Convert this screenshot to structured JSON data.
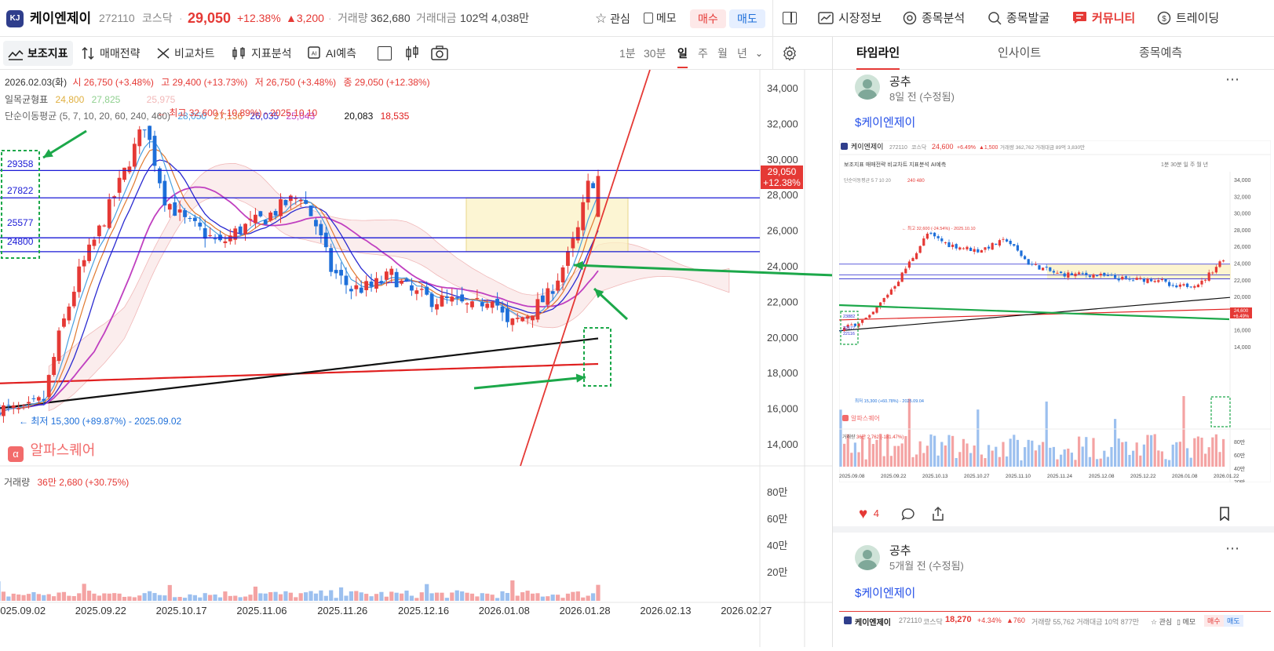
{
  "header": {
    "logo_text": "KJ",
    "name": "케이엔제이",
    "code": "272110",
    "market": "코스닥",
    "price": "29,050",
    "change_pct": "+12.38%",
    "change_abs": "▲3,200",
    "volume_label": "거래량",
    "volume": "362,680",
    "value_label": "거래대금",
    "value": "102억 4,038만",
    "watch_label": "관심",
    "memo_label": "메모",
    "buy_label": "매수",
    "sell_label": "매도",
    "nav": [
      "시장정보",
      "종목분석",
      "종목발굴",
      "커뮤니티",
      "트레이딩"
    ]
  },
  "toolbar": {
    "indicator_label": "보조지표",
    "strategy_label": "매매전략",
    "compare_label": "비교차트",
    "analysis_label": "지표분석",
    "ai_label": "AI예측",
    "periods": [
      "1분",
      "30분",
      "일",
      "주",
      "월",
      "년"
    ],
    "active_period": "일"
  },
  "chart_info": {
    "date": "2026.02.03(화)",
    "open": "시 26,750 (+3.48%)",
    "high": "고 29,400 (+13.73%)",
    "low": "저 26,750 (+3.48%)",
    "close": "종 29,050 (+12.38%)",
    "ichimoku_label": "일목균형표",
    "ichimoku_values": [
      "24,800",
      "27,825",
      "25,975"
    ],
    "ma_label": "단순이동평균 (5, 7, 10, 20, 60, 240, 460)",
    "ma_values": [
      "28,050",
      "27,136",
      "26,035",
      "25,043",
      "20,083",
      "18,535"
    ],
    "max_note": "최고 32,600 (-10.89%) - 2025.10.10",
    "min_note": "← 최저 15,300 (+89.87%) - 2025.09.02",
    "brand": "알파스퀘어",
    "level_labels": [
      "29358",
      "27822",
      "25577",
      "24800"
    ],
    "price_tag": "29,050",
    "price_tag_pct": "+12.38%",
    "volume_label": "거래량",
    "volume_value": "36만 2,680 (+30.75%)",
    "y_ticks": [
      "34,000",
      "32,000",
      "30,000",
      "28,000",
      "26,000",
      "24,000",
      "22,000",
      "20,000",
      "18,000",
      "16,000",
      "14,000"
    ],
    "vol_ticks": [
      "80만",
      "60만",
      "40만",
      "20만"
    ],
    "x_ticks": [
      "2025.09.02",
      "2025.09.22",
      "2025.10.17",
      "2025.11.06",
      "2025.11.26",
      "2025.12.16",
      "2026.01.08",
      "2026.01.28",
      "2026.02.13",
      "2026.02.27"
    ]
  },
  "chart_data": {
    "type": "candlestick",
    "ylim": [
      13000,
      35000
    ],
    "levels": [
      29358,
      27822,
      25577,
      24800
    ],
    "last_close": 29050,
    "colors": {
      "up": "#e53935",
      "down": "#1e6fd9",
      "level": "#1a1ad6",
      "ma60": "#111111",
      "ma240": "#e02020"
    }
  },
  "sidebar": {
    "tabs": [
      "타임라인",
      "인사이트",
      "종목예측"
    ],
    "posts": [
      {
        "author": "공추",
        "time": "8일 전 (수정됨)",
        "ticker": "$케이엔제이",
        "likes": "4",
        "shot": {
          "name": "케이엔제이",
          "code": "272110",
          "market": "코스닥",
          "price": "24,600",
          "pct": "+6.49%",
          "abs": "▲1,500",
          "vol": "거래량 362,762  거래대금 89억 3,830만",
          "tag": "24,600",
          "tag_pct": "+6.49%",
          "levels": [
            "23882",
            "22577",
            "22116"
          ],
          "y_ticks": [
            "34,000",
            "32,000",
            "30,000",
            "28,000",
            "26,000",
            "24,000",
            "22,000",
            "20,000",
            "18,000",
            "16,000",
            "14,000"
          ],
          "vol_ticks": [
            "80만",
            "60만",
            "40만",
            "20만"
          ],
          "x_ticks": [
            "2025.09.08",
            "2025.09.22",
            "2025.10.13",
            "2025.10.27",
            "2025.11.10",
            "2025.11.24",
            "2025.12.08",
            "2025.12.22",
            "2026.01.08",
            "2026.01.22"
          ],
          "max_note": "최고 32,600 (-24.54%) - 2025.10.10",
          "min_note": "최저 15,300 (+60.78%) - 2025.09.04",
          "vol_label": "거래량",
          "vol_value": "36만 2,762 (-181.47%)",
          "brand": "알파스퀘어",
          "ma_label": "단순이동평균 5 7 10 20",
          "ma_extra": "240 480"
        }
      },
      {
        "author": "공추",
        "time": "5개월 전 (수정됨)",
        "ticker": "$케이엔제이",
        "shot": {
          "name": "케이엔제이",
          "code": "272110",
          "market": "코스닥",
          "price": "18,270",
          "pct": "+4.34%",
          "abs": "▲760",
          "vol": "거래량 55,762  거래대금 10억 877만"
        }
      }
    ]
  }
}
